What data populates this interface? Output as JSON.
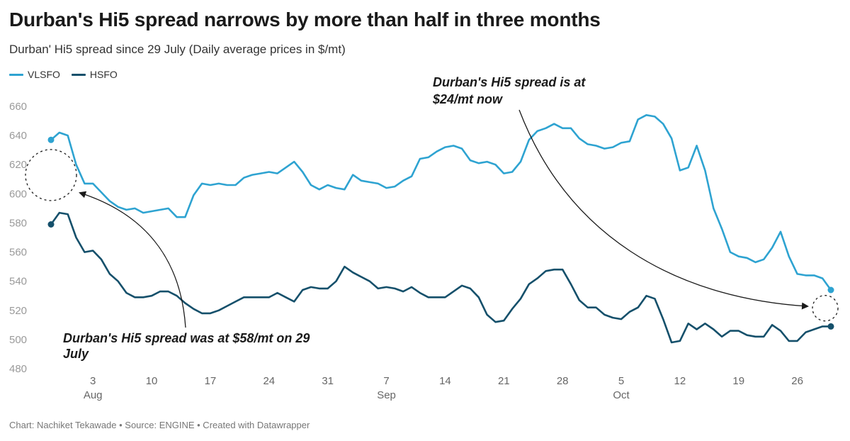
{
  "chart_data": {
    "type": "line",
    "title": "Durban's Hi5 spread narrows by more than half in three months",
    "subtitle": "Durban' Hi5 spread since 29 July (Daily average prices in $/mt)",
    "xlabel": "",
    "ylabel": "",
    "ylim": [
      480,
      660
    ],
    "yticks": [
      480,
      500,
      520,
      540,
      560,
      580,
      600,
      620,
      640,
      660
    ],
    "x_start": "2024-07-29",
    "x_end": "2024-10-30",
    "x_ticks": [
      {
        "label": "3",
        "month": "Aug",
        "date": "2024-08-03"
      },
      {
        "label": "10",
        "month": "",
        "date": "2024-08-10"
      },
      {
        "label": "17",
        "month": "",
        "date": "2024-08-17"
      },
      {
        "label": "24",
        "month": "",
        "date": "2024-08-24"
      },
      {
        "label": "31",
        "month": "",
        "date": "2024-08-31"
      },
      {
        "label": "7",
        "month": "Sep",
        "date": "2024-09-07"
      },
      {
        "label": "14",
        "month": "",
        "date": "2024-09-14"
      },
      {
        "label": "21",
        "month": "",
        "date": "2024-09-21"
      },
      {
        "label": "28",
        "month": "",
        "date": "2024-09-28"
      },
      {
        "label": "5",
        "month": "Oct",
        "date": "2024-10-05"
      },
      {
        "label": "12",
        "month": "",
        "date": "2024-10-12"
      },
      {
        "label": "19",
        "month": "",
        "date": "2024-10-19"
      },
      {
        "label": "26",
        "month": "",
        "date": "2024-10-26"
      }
    ],
    "series": [
      {
        "name": "VLSFO",
        "color": "#2ea3d1",
        "points": [
          [
            "2024-07-29",
            637
          ],
          [
            "2024-07-30",
            642
          ],
          [
            "2024-07-31",
            640
          ],
          [
            "2024-08-01",
            620
          ],
          [
            "2024-08-02",
            607
          ],
          [
            "2024-08-03",
            607
          ],
          [
            "2024-08-05",
            595
          ],
          [
            "2024-08-06",
            591
          ],
          [
            "2024-08-07",
            589
          ],
          [
            "2024-08-08",
            590
          ],
          [
            "2024-08-09",
            587
          ],
          [
            "2024-08-10",
            588
          ],
          [
            "2024-08-12",
            590
          ],
          [
            "2024-08-13",
            584
          ],
          [
            "2024-08-14",
            584
          ],
          [
            "2024-08-15",
            599
          ],
          [
            "2024-08-16",
            607
          ],
          [
            "2024-08-17",
            606
          ],
          [
            "2024-08-18",
            607
          ],
          [
            "2024-08-19",
            606
          ],
          [
            "2024-08-20",
            606
          ],
          [
            "2024-08-21",
            611
          ],
          [
            "2024-08-22",
            613
          ],
          [
            "2024-08-23",
            614
          ],
          [
            "2024-08-24",
            615
          ],
          [
            "2024-08-25",
            614
          ],
          [
            "2024-08-26",
            618
          ],
          [
            "2024-08-27",
            622
          ],
          [
            "2024-08-28",
            615
          ],
          [
            "2024-08-29",
            606
          ],
          [
            "2024-08-30",
            603
          ],
          [
            "2024-08-31",
            606
          ],
          [
            "2024-09-01",
            604
          ],
          [
            "2024-09-02",
            603
          ],
          [
            "2024-09-03",
            613
          ],
          [
            "2024-09-04",
            609
          ],
          [
            "2024-09-05",
            608
          ],
          [
            "2024-09-06",
            607
          ],
          [
            "2024-09-07",
            604
          ],
          [
            "2024-09-08",
            605
          ],
          [
            "2024-09-09",
            609
          ],
          [
            "2024-09-10",
            612
          ],
          [
            "2024-09-11",
            624
          ],
          [
            "2024-09-12",
            625
          ],
          [
            "2024-09-13",
            629
          ],
          [
            "2024-09-14",
            632
          ],
          [
            "2024-09-15",
            633
          ],
          [
            "2024-09-16",
            631
          ],
          [
            "2024-09-17",
            623
          ],
          [
            "2024-09-18",
            621
          ],
          [
            "2024-09-19",
            622
          ],
          [
            "2024-09-20",
            620
          ],
          [
            "2024-09-21",
            614
          ],
          [
            "2024-09-22",
            615
          ],
          [
            "2024-09-23",
            622
          ],
          [
            "2024-09-24",
            637
          ],
          [
            "2024-09-25",
            643
          ],
          [
            "2024-09-26",
            645
          ],
          [
            "2024-09-27",
            648
          ],
          [
            "2024-09-28",
            645
          ],
          [
            "2024-09-29",
            645
          ],
          [
            "2024-09-30",
            638
          ],
          [
            "2024-10-01",
            634
          ],
          [
            "2024-10-02",
            633
          ],
          [
            "2024-10-03",
            631
          ],
          [
            "2024-10-04",
            632
          ],
          [
            "2024-10-05",
            635
          ],
          [
            "2024-10-06",
            636
          ],
          [
            "2024-10-07",
            651
          ],
          [
            "2024-10-08",
            654
          ],
          [
            "2024-10-09",
            653
          ],
          [
            "2024-10-10",
            648
          ],
          [
            "2024-10-11",
            638
          ],
          [
            "2024-10-12",
            616
          ],
          [
            "2024-10-13",
            618
          ],
          [
            "2024-10-14",
            633
          ],
          [
            "2024-10-15",
            616
          ],
          [
            "2024-10-16",
            590
          ],
          [
            "2024-10-17",
            576
          ],
          [
            "2024-10-18",
            560
          ],
          [
            "2024-10-19",
            557
          ],
          [
            "2024-10-20",
            556
          ],
          [
            "2024-10-21",
            553
          ],
          [
            "2024-10-22",
            555
          ],
          [
            "2024-10-23",
            563
          ],
          [
            "2024-10-24",
            574
          ],
          [
            "2024-10-25",
            557
          ],
          [
            "2024-10-26",
            545
          ],
          [
            "2024-10-27",
            544
          ],
          [
            "2024-10-28",
            544
          ],
          [
            "2024-10-29",
            542
          ],
          [
            "2024-10-30",
            534
          ]
        ]
      },
      {
        "name": "HSFO",
        "color": "#15506b",
        "points": [
          [
            "2024-07-29",
            579
          ],
          [
            "2024-07-30",
            587
          ],
          [
            "2024-07-31",
            586
          ],
          [
            "2024-08-01",
            570
          ],
          [
            "2024-08-02",
            560
          ],
          [
            "2024-08-03",
            561
          ],
          [
            "2024-08-04",
            555
          ],
          [
            "2024-08-05",
            545
          ],
          [
            "2024-08-06",
            540
          ],
          [
            "2024-08-07",
            532
          ],
          [
            "2024-08-08",
            529
          ],
          [
            "2024-08-09",
            529
          ],
          [
            "2024-08-10",
            530
          ],
          [
            "2024-08-11",
            533
          ],
          [
            "2024-08-12",
            533
          ],
          [
            "2024-08-13",
            530
          ],
          [
            "2024-08-14",
            525
          ],
          [
            "2024-08-15",
            521
          ],
          [
            "2024-08-16",
            518
          ],
          [
            "2024-08-17",
            518
          ],
          [
            "2024-08-18",
            520
          ],
          [
            "2024-08-19",
            523
          ],
          [
            "2024-08-20",
            526
          ],
          [
            "2024-08-21",
            529
          ],
          [
            "2024-08-22",
            529
          ],
          [
            "2024-08-23",
            529
          ],
          [
            "2024-08-24",
            529
          ],
          [
            "2024-08-25",
            532
          ],
          [
            "2024-08-26",
            529
          ],
          [
            "2024-08-27",
            526
          ],
          [
            "2024-08-28",
            534
          ],
          [
            "2024-08-29",
            536
          ],
          [
            "2024-08-30",
            535
          ],
          [
            "2024-08-31",
            535
          ],
          [
            "2024-09-01",
            540
          ],
          [
            "2024-09-02",
            550
          ],
          [
            "2024-09-03",
            546
          ],
          [
            "2024-09-04",
            543
          ],
          [
            "2024-09-05",
            540
          ],
          [
            "2024-09-06",
            535
          ],
          [
            "2024-09-07",
            536
          ],
          [
            "2024-09-08",
            535
          ],
          [
            "2024-09-09",
            533
          ],
          [
            "2024-09-10",
            536
          ],
          [
            "2024-09-11",
            532
          ],
          [
            "2024-09-12",
            529
          ],
          [
            "2024-09-13",
            529
          ],
          [
            "2024-09-14",
            529
          ],
          [
            "2024-09-15",
            533
          ],
          [
            "2024-09-16",
            537
          ],
          [
            "2024-09-17",
            535
          ],
          [
            "2024-09-18",
            529
          ],
          [
            "2024-09-19",
            517
          ],
          [
            "2024-09-20",
            512
          ],
          [
            "2024-09-21",
            513
          ],
          [
            "2024-09-22",
            521
          ],
          [
            "2024-09-23",
            528
          ],
          [
            "2024-09-24",
            538
          ],
          [
            "2024-09-25",
            542
          ],
          [
            "2024-09-26",
            547
          ],
          [
            "2024-09-27",
            548
          ],
          [
            "2024-09-28",
            548
          ],
          [
            "2024-09-29",
            538
          ],
          [
            "2024-09-30",
            527
          ],
          [
            "2024-10-01",
            522
          ],
          [
            "2024-10-02",
            522
          ],
          [
            "2024-10-03",
            517
          ],
          [
            "2024-10-04",
            515
          ],
          [
            "2024-10-05",
            514
          ],
          [
            "2024-10-06",
            519
          ],
          [
            "2024-10-07",
            522
          ],
          [
            "2024-10-08",
            530
          ],
          [
            "2024-10-09",
            528
          ],
          [
            "2024-10-10",
            514
          ],
          [
            "2024-10-11",
            498
          ],
          [
            "2024-10-12",
            499
          ],
          [
            "2024-10-13",
            511
          ],
          [
            "2024-10-14",
            507
          ],
          [
            "2024-10-15",
            511
          ],
          [
            "2024-10-16",
            507
          ],
          [
            "2024-10-17",
            502
          ],
          [
            "2024-10-18",
            506
          ],
          [
            "2024-10-19",
            506
          ],
          [
            "2024-10-20",
            503
          ],
          [
            "2024-10-21",
            502
          ],
          [
            "2024-10-22",
            502
          ],
          [
            "2024-10-23",
            510
          ],
          [
            "2024-10-24",
            506
          ],
          [
            "2024-10-25",
            499
          ],
          [
            "2024-10-26",
            499
          ],
          [
            "2024-10-27",
            505
          ],
          [
            "2024-10-28",
            507
          ],
          [
            "2024-10-29",
            509
          ],
          [
            "2024-10-30",
            509
          ]
        ]
      }
    ],
    "annotations": [
      {
        "text_lines": [
          "Durban's Hi5 spread was at $58/mt on 29",
          "July"
        ],
        "date": "2024-07-29"
      },
      {
        "text_lines": [
          "Durban's Hi5 spread is at",
          "$24/mt now"
        ],
        "date": "2024-10-30"
      }
    ],
    "footer": "Chart: Nachiket Tekawade • Source: ENGINE • Created with Datawrapper"
  }
}
